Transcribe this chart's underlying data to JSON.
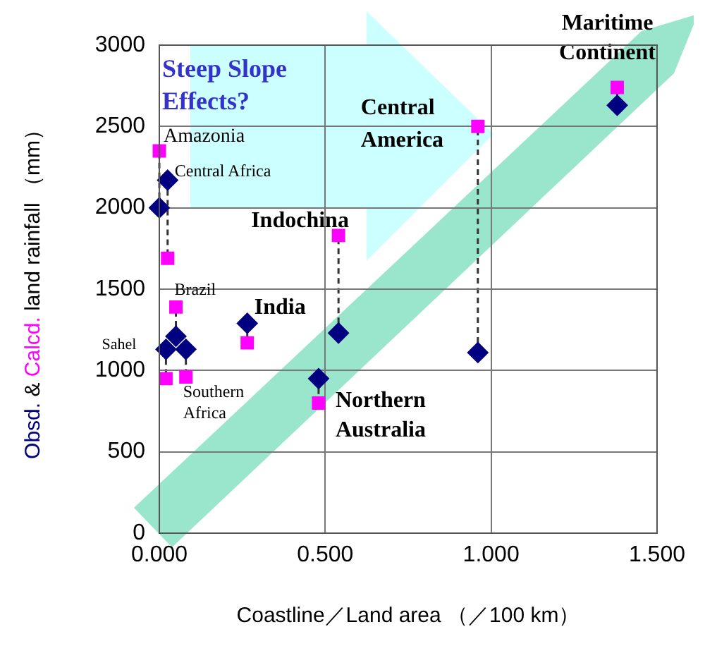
{
  "chart_data": {
    "type": "scatter",
    "xlabel": "Coastline／Land area （／100 km）",
    "ylabel": "Obsd. & Calcd. land rainfall （mm）",
    "x": [
      0,
      0.025,
      0.05,
      0.02,
      0.08,
      0.265,
      0.54,
      0.48,
      0.96,
      1.38
    ],
    "series": [
      {
        "color": "#000080",
        "marker": "diamond",
        "values": [
          2000,
          2170,
          1210,
          1130,
          1130,
          1290,
          1230,
          950,
          1110,
          2630
        ]
      },
      {
        "color": "#ff00ff",
        "marker": "square",
        "values": [
          2350,
          1690,
          1390,
          950,
          960,
          1170,
          1830,
          800,
          2500,
          2740
        ]
      }
    ],
    "xlim": [
      0,
      1.5
    ],
    "xticks": [
      {
        "value": 0,
        "label": "0.000"
      },
      {
        "value": 0.5,
        "label": "0.500"
      },
      {
        "value": 1,
        "label": "1.000"
      },
      {
        "value": 1.5,
        "label": "1.500"
      }
    ],
    "ylim": [
      0,
      3000
    ],
    "yticks": [
      0,
      500,
      1000,
      1500,
      2000,
      2500,
      3000
    ],
    "grid": true,
    "legend": false,
    "annotations": [
      {
        "text": "Amazonia",
        "x": 0,
        "y": 2350
      },
      {
        "text": "Central Africa",
        "x": 0.025,
        "y": 2170
      },
      {
        "text": "Brazil",
        "x": 0.05,
        "y": 1390
      },
      {
        "text": "Sahel",
        "x": 0.02,
        "y": 1130
      },
      {
        "text": "Southern Africa",
        "x": 0.08,
        "y": 960
      },
      {
        "text": "India",
        "x": 0.265,
        "y": 1290
      },
      {
        "text": "Indochina",
        "x": 0.54,
        "y": 1830
      },
      {
        "text": "Northern Australia",
        "x": 0.48,
        "y": 805
      },
      {
        "text": "Central America",
        "x": 0.96,
        "y": 2500
      },
      {
        "text": "Maritime Continent",
        "x": 1.38,
        "y": 2740
      },
      "Steep Slope Effects?"
    ]
  }
}
